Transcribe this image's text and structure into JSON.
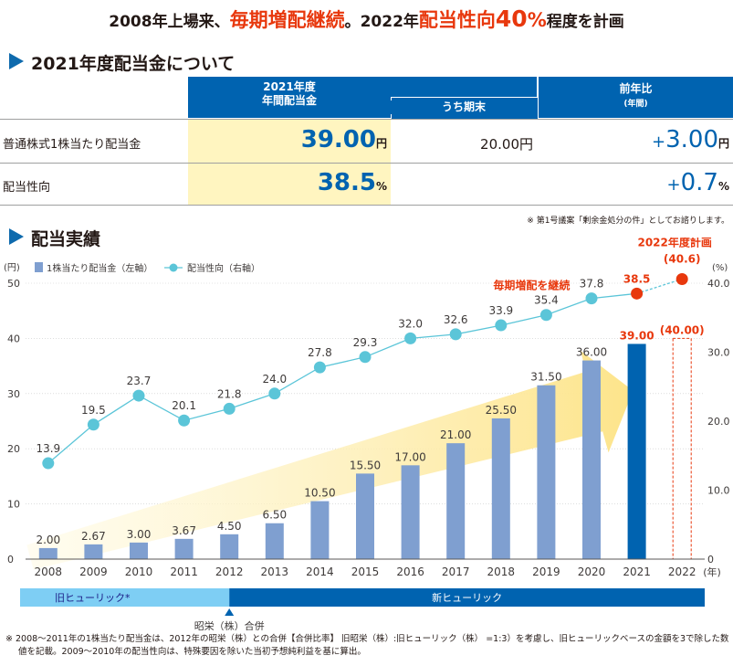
{
  "headline": {
    "part1": "2008年上場来、",
    "part2": "毎期増配継続",
    "part3": "。2022年",
    "part4": "配当性向",
    "part5": "40",
    "part6": "%",
    "part7": "程度を計画"
  },
  "section1": {
    "title": "2021年度配当金について",
    "header_annual": "2021年度\n年間配当金",
    "header_annual_l1": "2021年度",
    "header_annual_l2": "年間配当金",
    "header_yearend": "うち期末",
    "header_yoy": "前年比",
    "header_yoy_sub": "(年間)",
    "row1_label": "普通株式1株当たり配当金",
    "row1_annual": "39.00",
    "row1_annual_unit": "円",
    "row1_yearend": "20.00円",
    "row1_yoy_sign": "+",
    "row1_yoy": "3.00",
    "row1_yoy_unit": "円",
    "row2_label": "配当性向",
    "row2_annual": "38.5",
    "row2_annual_unit": "%",
    "row2_yoy_sign": "+",
    "row2_yoy": "0.7",
    "row2_yoy_unit": "%",
    "note": "※ 第1号議案「剰余金処分の件」としてお諮りします。"
  },
  "section2": {
    "title": "配当実績"
  },
  "chart_data": {
    "type": "bar",
    "categories": [
      "2008",
      "2009",
      "2010",
      "2011",
      "2012",
      "2013",
      "2014",
      "2015",
      "2016",
      "2017",
      "2018",
      "2019",
      "2020",
      "2021",
      "2022"
    ],
    "x_unit": "(年)",
    "series": [
      {
        "name": "1株当たり配当金（左軸）",
        "type": "bar",
        "axis": "left",
        "values": [
          2.0,
          2.67,
          3.0,
          3.67,
          4.5,
          6.5,
          10.5,
          15.5,
          17.0,
          21.0,
          25.5,
          31.5,
          36.0,
          39.0,
          40.0
        ],
        "labels": [
          "2.00",
          "2.67",
          "3.00",
          "3.67",
          "4.50",
          "6.50",
          "10.50",
          "15.50",
          "17.00",
          "21.00",
          "25.50",
          "31.50",
          "36.00",
          "39.00",
          "(40.00)"
        ]
      },
      {
        "name": "配当性向（右軸）",
        "type": "line",
        "axis": "right",
        "values": [
          13.9,
          19.5,
          23.7,
          20.1,
          21.8,
          24.0,
          27.8,
          29.3,
          32.0,
          32.6,
          33.9,
          35.4,
          37.8,
          38.5,
          40.6
        ],
        "labels": [
          "13.9",
          "19.5",
          "23.7",
          "20.1",
          "21.8",
          "24.0",
          "27.8",
          "29.3",
          "32.0",
          "32.6",
          "33.9",
          "35.4",
          "37.8",
          "38.5",
          "(40.6)"
        ]
      }
    ],
    "left_axis": {
      "unit": "(円)",
      "ylim": [
        0,
        50
      ],
      "ticks": [
        "0",
        "10",
        "20",
        "30",
        "40",
        "50"
      ]
    },
    "right_axis": {
      "unit": "(%)",
      "ylim": [
        0,
        40
      ],
      "ticks": [
        "0",
        "10.0",
        "20.0",
        "30.0",
        "40.0"
      ]
    },
    "colors": {
      "bar": "#7f9fd0",
      "bar_2021": "#0063b0",
      "bar_2022": "#e8380d",
      "line": "#5bc5d8",
      "highlight": "#e8380d",
      "arrow": "#fde48a"
    },
    "annotations": {
      "plan": "2022年度計画",
      "continue": "毎期増配を継続"
    },
    "eras": {
      "old": "旧ヒューリック*",
      "new": "新ヒューリック",
      "merger": "昭栄（株）合併"
    }
  },
  "footnote": {
    "line1": "※  2008～2011年の1株当たり配当金は、2012年の昭栄（株）との合併【合併比率】 旧昭栄（株）:旧ヒューリック（株） =1:3）を考慮し、旧ヒューリックベースの金額を3で除した数",
    "line2": "値を記載。2009～2010年の配当性向は、特殊要因を除いた当初予想純利益を基に算出。"
  }
}
